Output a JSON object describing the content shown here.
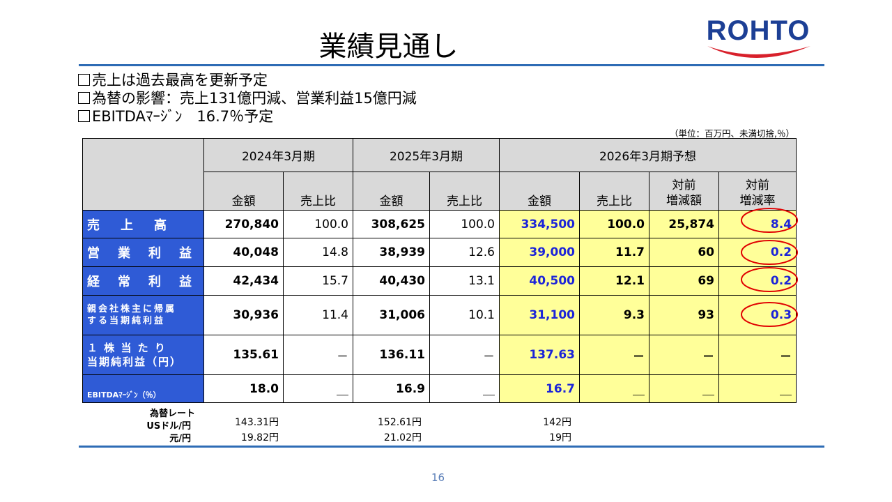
{
  "title": "業績見通し",
  "logo": {
    "text": "ROHTO"
  },
  "bullets": [
    "売上は過去最高を更新予定",
    "為替の影響：売上131億円減、営業利益15億円減",
    "EBITDAﾏｰｼﾞﾝ　16.7％予定"
  ],
  "unit_note": "（単位：百万円、未満切捨,％）",
  "table": {
    "period_headers": [
      "2024年3月期",
      "2025年3月期",
      "2026年3月期予想"
    ],
    "sub_headers": {
      "amount": "金額",
      "ratio": "売上比",
      "yoy_amount": [
        "対前",
        "増減額"
      ],
      "yoy_rate": [
        "対前",
        "増減率"
      ]
    },
    "rows": [
      {
        "label": "売　上　高",
        "fy24_amount": "270,840",
        "fy24_ratio": "100.0",
        "fy25_amount": "308,625",
        "fy25_ratio": "100.0",
        "fy26_amount": "334,500",
        "fy26_ratio": "100.0",
        "fy26_diff": "25,874",
        "fy26_rate": "8.4"
      },
      {
        "label": "営　業　利　益",
        "fy24_amount": "40,048",
        "fy24_ratio": "14.8",
        "fy25_amount": "38,939",
        "fy25_ratio": "12.6",
        "fy26_amount": "39,000",
        "fy26_ratio": "11.7",
        "fy26_diff": "60",
        "fy26_rate": "0.2"
      },
      {
        "label": "経　常　利　益",
        "fy24_amount": "42,434",
        "fy24_ratio": "15.7",
        "fy25_amount": "40,430",
        "fy25_ratio": "13.1",
        "fy26_amount": "40,500",
        "fy26_ratio": "12.1",
        "fy26_diff": "69",
        "fy26_rate": "0.2"
      },
      {
        "label_lines": [
          "親会社株主に帰属",
          "する当期純利益"
        ],
        "fy24_amount": "30,936",
        "fy24_ratio": "11.4",
        "fy25_amount": "31,006",
        "fy25_ratio": "10.1",
        "fy26_amount": "31,100",
        "fy26_ratio": "9.3",
        "fy26_diff": "93",
        "fy26_rate": "0.3"
      },
      {
        "label_lines": [
          "１ 株 当 た り",
          "当期純利益（円）"
        ],
        "fy24_amount": "135.61",
        "fy24_ratio": "－",
        "fy25_amount": "136.11",
        "fy25_ratio": "－",
        "fy26_amount": "137.63",
        "fy26_ratio": "－",
        "fy26_diff": "－",
        "fy26_rate": "－"
      },
      {
        "label": "EBITDAﾏｰｼﾞﾝ（％）",
        "fy24_amount": "18.0",
        "fy24_ratio": "＿",
        "fy25_amount": "16.9",
        "fy25_ratio": "＿",
        "fy26_amount": "16.7",
        "fy26_ratio": "＿",
        "fy26_diff": "＿",
        "fy26_rate": "＿"
      }
    ]
  },
  "fx": {
    "labels": [
      "為替レート",
      "USドル/円",
      "元/円"
    ],
    "usd": [
      "143.31円",
      "152.61円",
      "142円"
    ],
    "cny": [
      "19.82円",
      "21.02円",
      "19円"
    ]
  },
  "colors": {
    "accent_rule": "#2e6cb5",
    "row_label_bg": "#2f5bd6",
    "forecast_bg": "#ffff99",
    "forecast_text": "#1c24d8",
    "highlight_oval": "#e00000"
  },
  "page_number": "16"
}
